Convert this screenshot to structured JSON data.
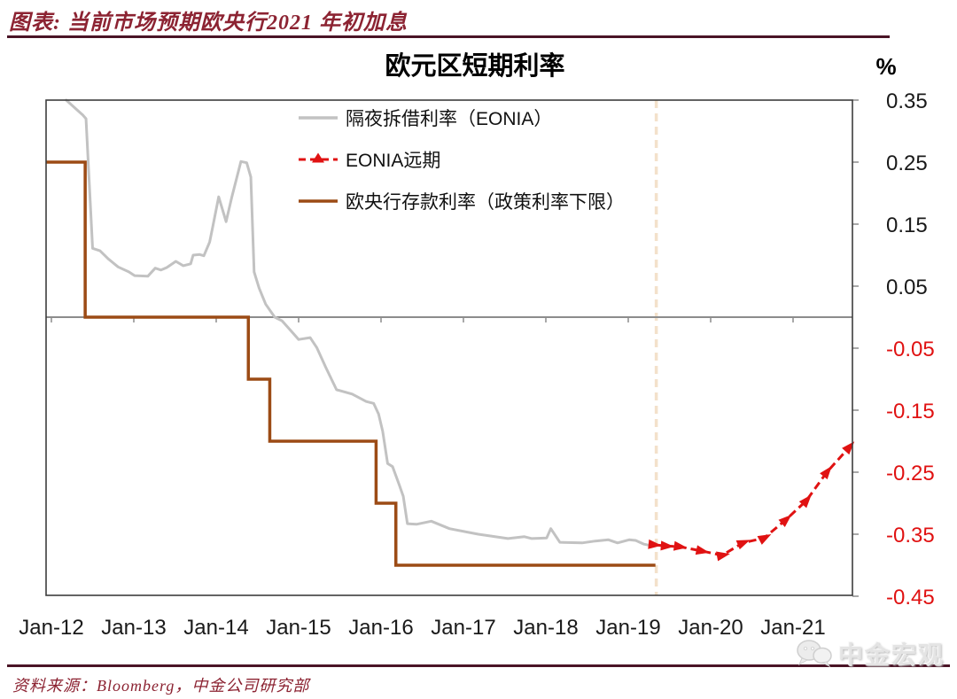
{
  "header": {
    "title": "图表: 当前市场预期欧央行2021 年初加息"
  },
  "footer": {
    "source_label": "资料来源：Bloomberg，中金公司研究部"
  },
  "watermark": {
    "text": "中金宏观",
    "icon": "wechat-chat-bubbles-icon"
  },
  "colors": {
    "maroon_text": "#8C2332",
    "maroon_rule": "#4A1426",
    "axis_gray": "#8c8c8c",
    "frame": "#3d3d3d",
    "negative_tick_red": "#E01212"
  },
  "chart_data": {
    "type": "line",
    "title": "欧元区短期利率",
    "unit_label": "%",
    "x_axis": {
      "tick_labels": [
        "Jan-12",
        "Jan-13",
        "Jan-14",
        "Jan-15",
        "Jan-16",
        "Jan-17",
        "Jan-18",
        "Jan-19",
        "Jan-20",
        "Jan-21"
      ]
    },
    "y_axis": {
      "ticks": [
        0.35,
        0.25,
        0.15,
        0.05,
        -0.05,
        -0.15,
        -0.25,
        -0.35,
        -0.45
      ],
      "range": [
        -0.45,
        0.35
      ],
      "negative_tick_color": "#E01212",
      "positive_tick_color": "#1a1a1a"
    },
    "grid": "off",
    "legend_position": "inside-top-center",
    "annotation_line": {
      "t": 7.34,
      "style": "dashed-vertical",
      "color": "#F3E1CB",
      "meaning": "forecast start (mid-2019)"
    },
    "series": [
      {
        "name": "隔夜拆借利率（EONIA）",
        "color": "#C2C2C2",
        "style": "solid",
        "points": [
          [
            0.18,
            0.35
          ],
          [
            0.38,
            0.326
          ],
          [
            0.42,
            0.32
          ],
          [
            0.5,
            0.111
          ],
          [
            0.59,
            0.107
          ],
          [
            0.69,
            0.094
          ],
          [
            0.81,
            0.081
          ],
          [
            0.94,
            0.073
          ],
          [
            1.01,
            0.067
          ],
          [
            1.17,
            0.066
          ],
          [
            1.26,
            0.079
          ],
          [
            1.33,
            0.076
          ],
          [
            1.4,
            0.08
          ],
          [
            1.51,
            0.09
          ],
          [
            1.6,
            0.083
          ],
          [
            1.69,
            0.086
          ],
          [
            1.72,
            0.1
          ],
          [
            1.8,
            0.101
          ],
          [
            1.85,
            0.099
          ],
          [
            1.92,
            0.121
          ],
          [
            1.96,
            0.147
          ],
          [
            2.03,
            0.194
          ],
          [
            2.12,
            0.154
          ],
          [
            2.19,
            0.194
          ],
          [
            2.3,
            0.251
          ],
          [
            2.37,
            0.249
          ],
          [
            2.42,
            0.226
          ],
          [
            2.46,
            0.073
          ],
          [
            2.52,
            0.047
          ],
          [
            2.6,
            0.021
          ],
          [
            2.71,
            0.0
          ],
          [
            2.8,
            -0.006
          ],
          [
            2.92,
            -0.024
          ],
          [
            3.0,
            -0.036
          ],
          [
            3.14,
            -0.033
          ],
          [
            3.22,
            -0.049
          ],
          [
            3.33,
            -0.081
          ],
          [
            3.46,
            -0.117
          ],
          [
            3.65,
            -0.124
          ],
          [
            3.82,
            -0.136
          ],
          [
            3.91,
            -0.139
          ],
          [
            3.97,
            -0.156
          ],
          [
            4.02,
            -0.184
          ],
          [
            4.08,
            -0.236
          ],
          [
            4.14,
            -0.241
          ],
          [
            4.22,
            -0.27
          ],
          [
            4.27,
            -0.289
          ],
          [
            4.32,
            -0.333
          ],
          [
            4.43,
            -0.334
          ],
          [
            4.61,
            -0.329
          ],
          [
            4.83,
            -0.341
          ],
          [
            5.18,
            -0.35
          ],
          [
            5.54,
            -0.357
          ],
          [
            5.74,
            -0.354
          ],
          [
            5.83,
            -0.357
          ],
          [
            6.01,
            -0.356
          ],
          [
            6.06,
            -0.341
          ],
          [
            6.17,
            -0.363
          ],
          [
            6.44,
            -0.364
          ],
          [
            6.6,
            -0.361
          ],
          [
            6.76,
            -0.359
          ],
          [
            6.87,
            -0.364
          ],
          [
            7.01,
            -0.359
          ],
          [
            7.09,
            -0.36
          ],
          [
            7.19,
            -0.366
          ],
          [
            7.3,
            -0.369
          ]
        ]
      },
      {
        "name": "EONIA远期",
        "color": "#E01212",
        "style": "dashed-triangle-markers",
        "points": [
          [
            7.31,
            -0.367
          ],
          [
            7.46,
            -0.369
          ],
          [
            7.62,
            -0.37
          ],
          [
            7.89,
            -0.377
          ],
          [
            8.14,
            -0.384
          ],
          [
            8.39,
            -0.364
          ],
          [
            8.65,
            -0.356
          ],
          [
            8.91,
            -0.327
          ],
          [
            9.16,
            -0.296
          ],
          [
            9.41,
            -0.25
          ],
          [
            9.68,
            -0.21
          ]
        ]
      },
      {
        "name": "欧央行存款利率（政策利率下限）",
        "color": "#9C4B15",
        "style": "step",
        "points": [
          [
            -0.06,
            0.25
          ],
          [
            0.41,
            0.25
          ],
          [
            0.41,
            0.0
          ],
          [
            2.39,
            0.0
          ],
          [
            2.39,
            -0.1
          ],
          [
            2.65,
            -0.1
          ],
          [
            2.65,
            -0.2
          ],
          [
            3.94,
            -0.2
          ],
          [
            3.94,
            -0.3
          ],
          [
            4.18,
            -0.3
          ],
          [
            4.18,
            -0.4
          ],
          [
            7.33,
            -0.4
          ]
        ]
      }
    ]
  }
}
